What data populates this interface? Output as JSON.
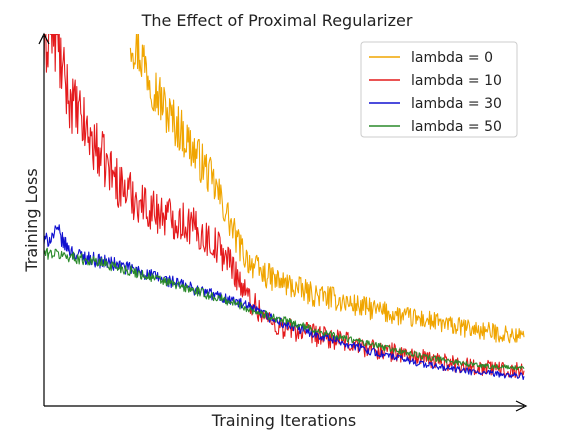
{
  "chart_data": {
    "type": "line",
    "title": "The Effect of Proximal Regularizer",
    "xlabel": "Training Iterations",
    "ylabel": "Training Loss",
    "xlim": [
      0,
      100
    ],
    "ylim": [
      0,
      100
    ],
    "grid": false,
    "legend_placement": "top-right",
    "series": [
      {
        "name": "lambda = 0",
        "color": "#f0a500",
        "x": [
          18,
          20,
          22,
          24,
          26,
          28,
          30,
          32,
          34,
          36,
          38,
          40,
          42,
          45,
          48,
          52,
          56,
          60,
          65,
          70,
          75,
          80,
          85,
          90,
          95,
          100
        ],
        "y": [
          100,
          95,
          89,
          83,
          78,
          75,
          71,
          67,
          63,
          58,
          52,
          45,
          40,
          36,
          34,
          32,
          30,
          29,
          27,
          25.5,
          24,
          23,
          21.5,
          20.5,
          19.5,
          18.5
        ]
      },
      {
        "name": "lambda = 10",
        "color": "#e41a1c",
        "x": [
          0,
          1,
          2,
          3,
          4,
          6,
          8,
          10,
          12,
          14,
          16,
          18,
          20,
          22,
          24,
          26,
          28,
          30,
          32,
          34,
          36,
          38,
          40,
          42,
          44,
          46,
          48,
          50,
          55,
          60,
          65,
          70,
          75,
          80,
          85,
          90,
          95,
          100
        ],
        "y": [
          95,
          100,
          100,
          96,
          88,
          81,
          76,
          71,
          67,
          63,
          59,
          57,
          55,
          53,
          52,
          51,
          50,
          49,
          47,
          45,
          43,
          40,
          36,
          30,
          27,
          24,
          22,
          21,
          19.5,
          18,
          16.5,
          15,
          14,
          12.5,
          11.5,
          10.5,
          10,
          9.5
        ]
      },
      {
        "name": "lambda = 30",
        "color": "#1010d0",
        "x": [
          0,
          2,
          3,
          4,
          6,
          10,
          15,
          20,
          25,
          30,
          35,
          40,
          45,
          50,
          55,
          60,
          65,
          70,
          75,
          80,
          85,
          90,
          95,
          100
        ],
        "y": [
          44,
          46,
          47,
          44,
          41,
          39.5,
          38,
          36,
          34,
          32,
          30,
          28,
          25,
          22,
          20,
          18,
          16,
          14,
          12.5,
          11,
          10,
          9,
          8.5,
          8
        ]
      },
      {
        "name": "lambda = 50",
        "color": "#2a8a2a",
        "x": [
          0,
          2,
          4,
          6,
          10,
          15,
          20,
          25,
          30,
          35,
          40,
          45,
          50,
          55,
          60,
          65,
          70,
          75,
          80,
          85,
          90,
          95,
          100
        ],
        "y": [
          41,
          41,
          40.5,
          40,
          39,
          37.5,
          35.5,
          33.5,
          31.5,
          29.5,
          27.5,
          25,
          23,
          21,
          19,
          17.5,
          16,
          14.5,
          13,
          12,
          11,
          10.5,
          10
        ]
      }
    ]
  }
}
